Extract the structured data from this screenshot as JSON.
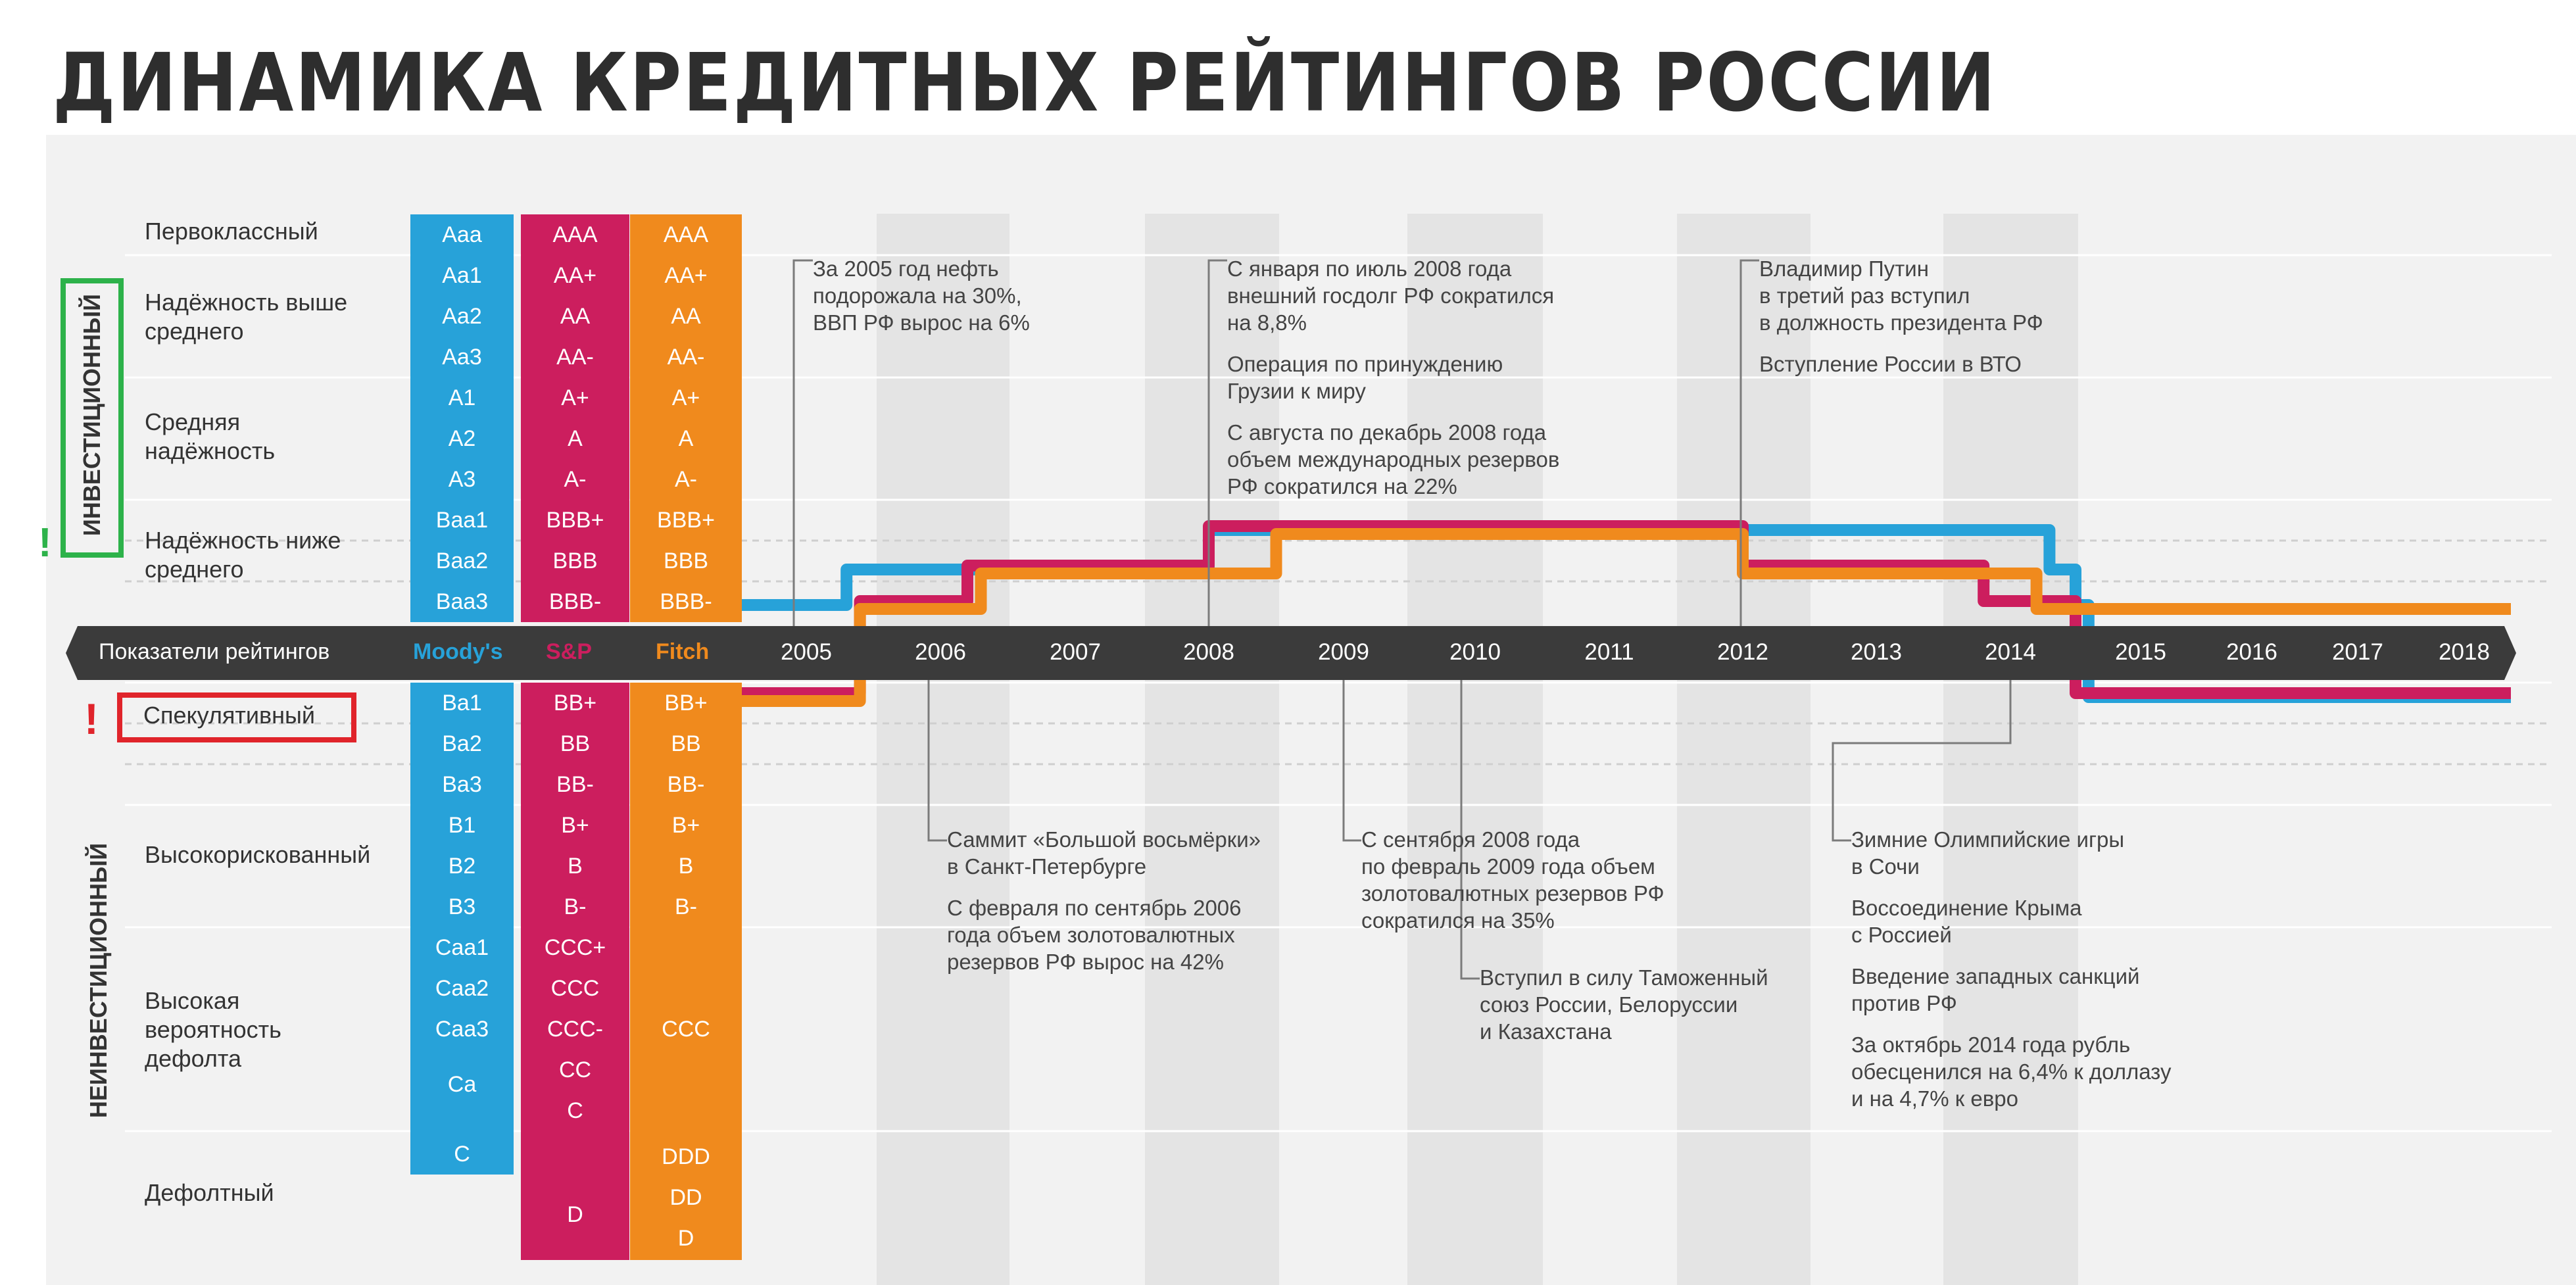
{
  "title": "ДИНАМИКА КРЕДИТНЫХ РЕЙТИНГОВ РОССИИ",
  "grades": {
    "investment": "ИНВЕСТИЦИОННЫЙ",
    "speculative_grade": "НЕИНВЕСТИЦИОННЫЙ",
    "warning_mark": "!"
  },
  "categories": [
    {
      "label": "Первоклассный"
    },
    {
      "label": "Надёжность выше среднего"
    },
    {
      "label": "Средняя надёжность"
    },
    {
      "label": "Надёжность ниже среднего"
    },
    {
      "label": "Спекулятивный"
    },
    {
      "label": "Высокорискованный"
    },
    {
      "label": "Высокая вероятность дефолта"
    },
    {
      "label": "Дефолтный"
    }
  ],
  "axis": {
    "label": "Показатели рейтингов",
    "moodys": "Moody's",
    "sp": "S&P",
    "fitch": "Fitch"
  },
  "agencies": {
    "moodys": {
      "color": "#27a2d9",
      "ratings_top": [
        "Aaa",
        "Aa1",
        "Aa2",
        "Aa3",
        "A1",
        "A2",
        "A3",
        "Baa1",
        "Baa2",
        "Baa3"
      ],
      "ratings_bottom": [
        "Ba1",
        "Ba2",
        "Ba3",
        "B1",
        "B2",
        "B3",
        "Caa1",
        "Caa2",
        "Caa3",
        "Ca",
        "C"
      ]
    },
    "sp": {
      "color": "#cc1e5e",
      "ratings_top": [
        "AAA",
        "AA+",
        "AA",
        "AA-",
        "A+",
        "A",
        "A-",
        "BBB+",
        "BBB",
        "BBB-"
      ],
      "ratings_bottom": [
        "BB+",
        "BB",
        "BB-",
        "B+",
        "B",
        "B-",
        "CCC+",
        "CCC",
        "CCC-",
        "CC",
        "C",
        "D"
      ]
    },
    "fitch": {
      "color": "#f08a1d",
      "ratings_top": [
        "AAA",
        "AA+",
        "AA",
        "AA-",
        "A+",
        "A",
        "A-",
        "BBB+",
        "BBB",
        "BBB-"
      ],
      "ratings_bottom": [
        "BB+",
        "BB",
        "BB-",
        "B+",
        "B",
        "B-",
        "CCC",
        "DDD",
        "DD",
        "D"
      ]
    }
  },
  "chart_data": {
    "type": "line",
    "title": "ДИНАМИКА КРЕДИТНЫХ РЕЙТИНГОВ РОССИИ",
    "x": [
      "2005",
      "2006",
      "2007",
      "2008",
      "2009",
      "2010",
      "2011",
      "2012",
      "2013",
      "2014",
      "2015",
      "2016",
      "2017",
      "2018"
    ],
    "series": [
      {
        "name": "Moody's",
        "color": "#27a2d9",
        "steps": [
          [
            2004.0,
            "Baa3"
          ],
          [
            2005.3,
            "Baa2"
          ],
          [
            2008.0,
            "Baa1"
          ],
          [
            2014.3,
            "Baa2"
          ],
          [
            2014.5,
            "Baa3"
          ],
          [
            2014.6,
            "Ba1"
          ]
        ]
      },
      {
        "name": "S&P",
        "color": "#cc1e5e",
        "steps": [
          [
            2004.0,
            "BB+"
          ],
          [
            2005.4,
            "BBB-"
          ],
          [
            2006.2,
            "BBB"
          ],
          [
            2008.0,
            "BBB+"
          ],
          [
            2012.0,
            "BBB"
          ],
          [
            2013.8,
            "BBB-"
          ],
          [
            2014.5,
            "BB+"
          ]
        ]
      },
      {
        "name": "Fitch",
        "color": "#f08a1d",
        "steps": [
          [
            2004.0,
            "BB+"
          ],
          [
            2005.4,
            "BBB-"
          ],
          [
            2006.3,
            "BBB"
          ],
          [
            2008.5,
            "BBB+"
          ],
          [
            2012.0,
            "BBB"
          ],
          [
            2014.2,
            "BBB-"
          ]
        ]
      }
    ]
  },
  "annotations": [
    {
      "id": "a2005",
      "lines": [
        "За 2005 год нефть",
        "подорожала на 30%,",
        "ВВП РФ вырос на 6%"
      ]
    },
    {
      "id": "a2008",
      "paras": [
        [
          "С января по июль 2008 года",
          "внешний госдолг РФ сократился",
          "на 8,8%"
        ],
        [
          "Операция по принуждению",
          "Грузии к миру"
        ],
        [
          "С августа по декабрь 2008 года",
          "объем международных резервов",
          "РФ сократился на 22%"
        ]
      ]
    },
    {
      "id": "a2012",
      "paras": [
        [
          "Владимир Путин",
          "в третий раз вступил",
          "в должность президента РФ"
        ],
        [
          "Вступление России в ВТО"
        ]
      ]
    },
    {
      "id": "a2006",
      "paras": [
        [
          "Саммит «Большой восьмёрки»",
          "в Санкт-Петербурге"
        ],
        [
          "С февраля по сентябрь 2006",
          "года объем золотовалютных",
          "резервов РФ вырос на 42%"
        ]
      ]
    },
    {
      "id": "a2009",
      "paras": [
        [
          "С сентября 2008 года",
          "по февраль 2009 года объем",
          "золотовалютных резервов РФ",
          "сократился на 35%"
        ]
      ]
    },
    {
      "id": "a2010",
      "paras": [
        [
          "Вступил в силу Таможенный",
          "союз России, Белоруссии",
          "и Казахстана"
        ]
      ]
    },
    {
      "id": "a2014",
      "paras": [
        [
          "Зимние Олимпийские игры",
          "в Сочи"
        ],
        [
          "Воссоединение Крыма",
          "с Россией"
        ],
        [
          "Введение западных санкций",
          "против РФ"
        ],
        [
          "За октябрь 2014 года рубль",
          "обесценился на 6,4% к доллазу",
          "и на 4,7% к евро"
        ]
      ]
    }
  ]
}
